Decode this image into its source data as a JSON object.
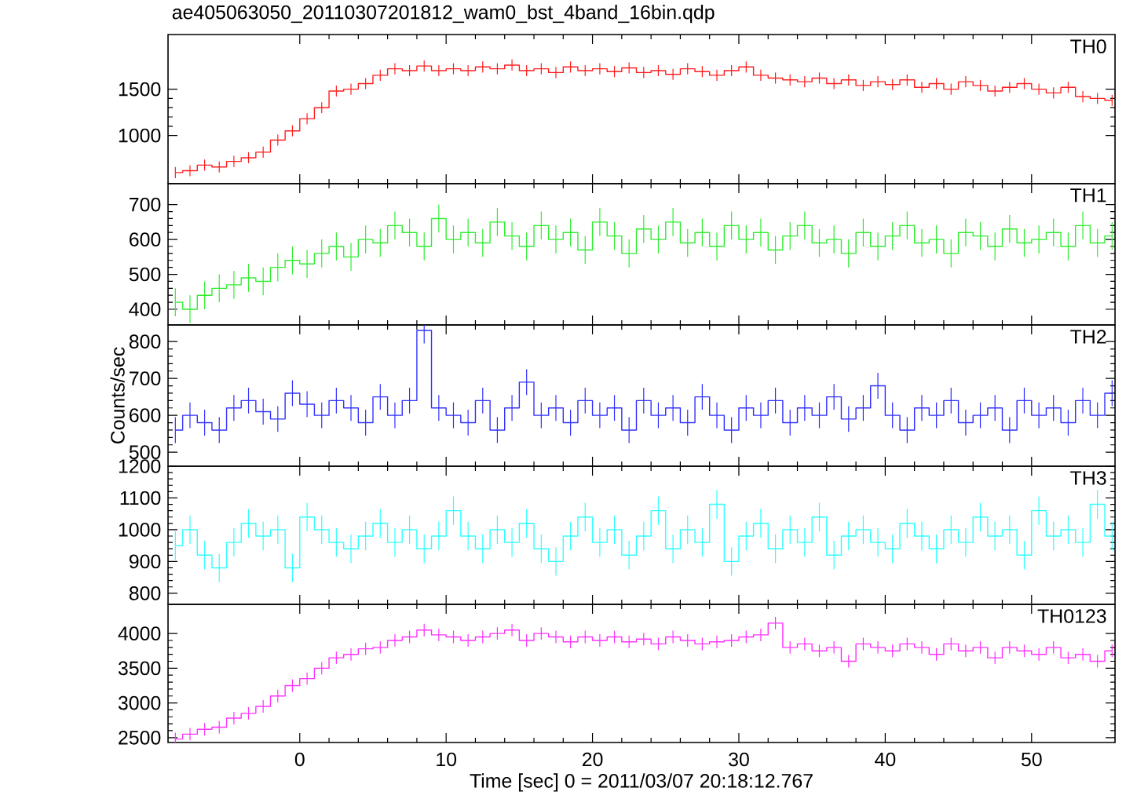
{
  "chart_data": [
    {
      "type": "step",
      "title": "ae405063050_20110307201812_wam0_bst_4band_16bin.qdp",
      "tick_labels": "y",
      "legend": "top right",
      "x": [
        -8.5,
        -7.5,
        -6.5,
        -5.5,
        -4.5,
        -3.5,
        -2.5,
        -1.5,
        -0.5,
        0.5,
        1.5,
        2.5,
        3.5,
        4.5,
        5.5,
        6.5,
        7.5,
        8.5,
        9.5,
        10.5,
        11.5,
        12.5,
        13.5,
        14.5,
        15.5,
        16.5,
        17.5,
        18.5,
        19.5,
        20.5,
        21.5,
        22.5,
        23.5,
        24.5,
        25.5,
        26.5,
        27.5,
        28.5,
        29.5,
        30.5,
        31.5,
        32.5,
        33.5,
        34.5,
        35.5,
        36.5,
        37.5,
        38.5,
        39.5,
        40.5,
        41.5,
        42.5,
        43.5,
        44.5,
        45.5,
        46.5,
        47.5,
        48.5,
        49.5,
        50.5,
        51.5,
        52.5,
        53.5,
        54.5,
        55.5
      ],
      "xlim": [
        -9,
        55.7
      ],
      "xticks": [
        0,
        10,
        20,
        30,
        40,
        50
      ],
      "ylim": [
        480,
        2090
      ],
      "yticks": [
        1000,
        1500
      ],
      "series": [
        {
          "name": "TH0",
          "color": "#ff2020",
          "values": [
            600,
            620,
            680,
            660,
            720,
            760,
            820,
            950,
            1050,
            1180,
            1300,
            1480,
            1500,
            1560,
            1650,
            1720,
            1700,
            1750,
            1700,
            1720,
            1700,
            1740,
            1720,
            1760,
            1700,
            1720,
            1680,
            1740,
            1700,
            1720,
            1690,
            1730,
            1680,
            1700,
            1660,
            1720,
            1690,
            1650,
            1700,
            1740,
            1650,
            1620,
            1600,
            1580,
            1620,
            1560,
            1600,
            1540,
            1580,
            1550,
            1600,
            1520,
            1560,
            1500,
            1580,
            1540,
            1480,
            1520,
            1560,
            1500,
            1460,
            1520,
            1420,
            1400,
            1380
          ],
          "errors": [
            60,
            60,
            60,
            60,
            60,
            60,
            60,
            60,
            60,
            60,
            60,
            60,
            60,
            60,
            60,
            60,
            60,
            60,
            60,
            60,
            60,
            60,
            60,
            60,
            60,
            60,
            60,
            60,
            60,
            60,
            60,
            60,
            60,
            60,
            60,
            60,
            60,
            60,
            60,
            60,
            60,
            60,
            60,
            60,
            60,
            60,
            60,
            60,
            60,
            60,
            60,
            60,
            60,
            60,
            60,
            60,
            60,
            60,
            60,
            60,
            60,
            60,
            60,
            60,
            60
          ]
        }
      ]
    },
    {
      "type": "step",
      "tick_labels": "y",
      "legend": "top right",
      "x": [
        -8.5,
        -7.5,
        -6.5,
        -5.5,
        -4.5,
        -3.5,
        -2.5,
        -1.5,
        -0.5,
        0.5,
        1.5,
        2.5,
        3.5,
        4.5,
        5.5,
        6.5,
        7.5,
        8.5,
        9.5,
        10.5,
        11.5,
        12.5,
        13.5,
        14.5,
        15.5,
        16.5,
        17.5,
        18.5,
        19.5,
        20.5,
        21.5,
        22.5,
        23.5,
        24.5,
        25.5,
        26.5,
        27.5,
        28.5,
        29.5,
        30.5,
        31.5,
        32.5,
        33.5,
        34.5,
        35.5,
        36.5,
        37.5,
        38.5,
        39.5,
        40.5,
        41.5,
        42.5,
        43.5,
        44.5,
        45.5,
        46.5,
        47.5,
        48.5,
        49.5,
        50.5,
        51.5,
        52.5,
        53.5,
        54.5,
        55.5
      ],
      "xlim": [
        -9,
        55.7
      ],
      "xticks": [
        0,
        10,
        20,
        30,
        40,
        50
      ],
      "ylim": [
        355,
        760
      ],
      "yticks": [
        400,
        500,
        600,
        700
      ],
      "series": [
        {
          "name": "TH1",
          "color": "#33ee33",
          "values": [
            420,
            400,
            440,
            460,
            470,
            490,
            480,
            520,
            540,
            530,
            560,
            580,
            550,
            600,
            590,
            640,
            620,
            580,
            660,
            600,
            620,
            590,
            650,
            610,
            580,
            640,
            600,
            620,
            570,
            650,
            610,
            560,
            630,
            600,
            650,
            590,
            620,
            580,
            640,
            600,
            620,
            570,
            610,
            640,
            590,
            600,
            560,
            620,
            580,
            610,
            640,
            590,
            600,
            560,
            620,
            610,
            580,
            630,
            590,
            600,
            620,
            580,
            640,
            590,
            610
          ],
          "errors": [
            40,
            40,
            40,
            40,
            40,
            40,
            40,
            40,
            40,
            40,
            40,
            40,
            40,
            40,
            40,
            40,
            40,
            40,
            40,
            40,
            40,
            40,
            40,
            40,
            40,
            40,
            40,
            40,
            40,
            40,
            40,
            40,
            40,
            40,
            40,
            40,
            40,
            40,
            40,
            40,
            40,
            40,
            40,
            40,
            40,
            40,
            40,
            40,
            40,
            40,
            40,
            40,
            40,
            40,
            40,
            40,
            40,
            40,
            40,
            40,
            40,
            40,
            40,
            40,
            40
          ]
        }
      ]
    },
    {
      "type": "step",
      "tick_labels": "y",
      "legend": "top right",
      "ylabel": "Counts/sec",
      "x": [
        -8.5,
        -7.5,
        -6.5,
        -5.5,
        -4.5,
        -3.5,
        -2.5,
        -1.5,
        -0.5,
        0.5,
        1.5,
        2.5,
        3.5,
        4.5,
        5.5,
        6.5,
        7.5,
        8.5,
        9.5,
        10.5,
        11.5,
        12.5,
        13.5,
        14.5,
        15.5,
        16.5,
        17.5,
        18.5,
        19.5,
        20.5,
        21.5,
        22.5,
        23.5,
        24.5,
        25.5,
        26.5,
        27.5,
        28.5,
        29.5,
        30.5,
        31.5,
        32.5,
        33.5,
        34.5,
        35.5,
        36.5,
        37.5,
        38.5,
        39.5,
        40.5,
        41.5,
        42.5,
        43.5,
        44.5,
        45.5,
        46.5,
        47.5,
        48.5,
        49.5,
        50.5,
        51.5,
        52.5,
        53.5,
        54.5,
        55.5
      ],
      "xlim": [
        -9,
        55.7
      ],
      "xticks": [
        0,
        10,
        20,
        30,
        40,
        50
      ],
      "ylim": [
        462,
        845
      ],
      "yticks": [
        500,
        600,
        700,
        800
      ],
      "series": [
        {
          "name": "TH2",
          "color": "#3333ff",
          "values": [
            560,
            600,
            580,
            560,
            620,
            640,
            610,
            590,
            660,
            630,
            600,
            640,
            620,
            580,
            650,
            600,
            640,
            830,
            620,
            600,
            580,
            640,
            560,
            620,
            690,
            600,
            620,
            580,
            640,
            600,
            620,
            560,
            640,
            600,
            620,
            580,
            650,
            600,
            560,
            620,
            600,
            640,
            580,
            620,
            600,
            650,
            590,
            620,
            680,
            600,
            560,
            620,
            600,
            640,
            580,
            600,
            620,
            560,
            640,
            600,
            620,
            580,
            640,
            600,
            660
          ],
          "errors": [
            35,
            35,
            35,
            35,
            35,
            35,
            35,
            35,
            35,
            35,
            35,
            35,
            35,
            35,
            35,
            35,
            35,
            35,
            35,
            35,
            35,
            35,
            35,
            35,
            35,
            35,
            35,
            35,
            35,
            35,
            35,
            35,
            35,
            35,
            35,
            35,
            35,
            35,
            35,
            35,
            35,
            35,
            35,
            35,
            35,
            35,
            35,
            35,
            35,
            35,
            35,
            35,
            35,
            35,
            35,
            35,
            35,
            35,
            35,
            35,
            35,
            35,
            35,
            35,
            35
          ]
        }
      ]
    },
    {
      "type": "step",
      "tick_labels": "y",
      "legend": "top right",
      "x": [
        -8.5,
        -7.5,
        -6.5,
        -5.5,
        -4.5,
        -3.5,
        -2.5,
        -1.5,
        -0.5,
        0.5,
        1.5,
        2.5,
        3.5,
        4.5,
        5.5,
        6.5,
        7.5,
        8.5,
        9.5,
        10.5,
        11.5,
        12.5,
        13.5,
        14.5,
        15.5,
        16.5,
        17.5,
        18.5,
        19.5,
        20.5,
        21.5,
        22.5,
        23.5,
        24.5,
        25.5,
        26.5,
        27.5,
        28.5,
        29.5,
        30.5,
        31.5,
        32.5,
        33.5,
        34.5,
        35.5,
        36.5,
        37.5,
        38.5,
        39.5,
        40.5,
        41.5,
        42.5,
        43.5,
        44.5,
        45.5,
        46.5,
        47.5,
        48.5,
        49.5,
        50.5,
        51.5,
        52.5,
        53.5,
        54.5,
        55.5
      ],
      "xlim": [
        -9,
        55.7
      ],
      "xticks": [
        0,
        10,
        20,
        30,
        40,
        50
      ],
      "ylim": [
        765,
        1200
      ],
      "yticks": [
        800,
        900,
        1000,
        1100,
        1200
      ],
      "series": [
        {
          "name": "TH3",
          "color": "#33ffff",
          "values": [
            950,
            1000,
            920,
            880,
            960,
            1020,
            980,
            1000,
            880,
            1040,
            1000,
            960,
            940,
            980,
            1020,
            960,
            1000,
            940,
            980,
            1060,
            980,
            940,
            1000,
            960,
            1020,
            940,
            900,
            980,
            1040,
            960,
            1000,
            920,
            980,
            1060,
            940,
            1000,
            960,
            1080,
            900,
            980,
            1020,
            940,
            1000,
            960,
            1040,
            920,
            980,
            1000,
            960,
            940,
            1020,
            980,
            940,
            1000,
            960,
            1040,
            980,
            1000,
            920,
            1060,
            980,
            1000,
            960,
            1080,
            980
          ],
          "errors": [
            45,
            45,
            45,
            45,
            45,
            45,
            45,
            45,
            45,
            45,
            45,
            45,
            45,
            45,
            45,
            45,
            45,
            45,
            45,
            45,
            45,
            45,
            45,
            45,
            45,
            45,
            45,
            45,
            45,
            45,
            45,
            45,
            45,
            45,
            45,
            45,
            45,
            45,
            45,
            45,
            45,
            45,
            45,
            45,
            45,
            45,
            45,
            45,
            45,
            45,
            45,
            45,
            45,
            45,
            45,
            45,
            45,
            45,
            45,
            45,
            45,
            45,
            45,
            45,
            45
          ]
        }
      ]
    },
    {
      "type": "step",
      "legend": "top right",
      "xlabel": "Time [sec] 0 = 2011/03/07 20:18:12.767",
      "x": [
        -8.5,
        -7.5,
        -6.5,
        -5.5,
        -4.5,
        -3.5,
        -2.5,
        -1.5,
        -0.5,
        0.5,
        1.5,
        2.5,
        3.5,
        4.5,
        5.5,
        6.5,
        7.5,
        8.5,
        9.5,
        10.5,
        11.5,
        12.5,
        13.5,
        14.5,
        15.5,
        16.5,
        17.5,
        18.5,
        19.5,
        20.5,
        21.5,
        22.5,
        23.5,
        24.5,
        25.5,
        26.5,
        27.5,
        28.5,
        29.5,
        30.5,
        31.5,
        32.5,
        33.5,
        34.5,
        35.5,
        36.5,
        37.5,
        38.5,
        39.5,
        40.5,
        41.5,
        42.5,
        43.5,
        44.5,
        45.5,
        46.5,
        47.5,
        48.5,
        49.5,
        50.5,
        51.5,
        52.5,
        53.5,
        54.5,
        55.5
      ],
      "xlim": [
        -9,
        55.7
      ],
      "xticks": [
        0,
        10,
        20,
        30,
        40,
        50
      ],
      "ylim": [
        2430,
        4420
      ],
      "yticks": [
        2500,
        3000,
        3500,
        4000
      ],
      "series": [
        {
          "name": "TH0123",
          "color": "#ff33ff",
          "values": [
            2480,
            2550,
            2620,
            2650,
            2780,
            2850,
            2950,
            3100,
            3250,
            3350,
            3500,
            3650,
            3700,
            3780,
            3800,
            3900,
            3950,
            4050,
            3980,
            3950,
            3900,
            3950,
            4000,
            4050,
            3900,
            4000,
            3950,
            3880,
            3950,
            3900,
            3950,
            3880,
            3920,
            3850,
            3950,
            3900,
            3850,
            3880,
            3900,
            3950,
            3980,
            4150,
            3800,
            3850,
            3750,
            3800,
            3600,
            3850,
            3800,
            3750,
            3850,
            3800,
            3700,
            3850,
            3750,
            3800,
            3650,
            3800,
            3750,
            3700,
            3800,
            3650,
            3700,
            3600,
            3750
          ],
          "errors": [
            90,
            90,
            90,
            90,
            90,
            90,
            90,
            90,
            90,
            90,
            90,
            90,
            90,
            90,
            90,
            90,
            90,
            90,
            90,
            90,
            90,
            90,
            90,
            90,
            90,
            90,
            90,
            90,
            90,
            90,
            90,
            90,
            90,
            90,
            90,
            90,
            90,
            90,
            90,
            90,
            90,
            90,
            90,
            90,
            90,
            90,
            90,
            90,
            90,
            90,
            90,
            90,
            90,
            90,
            90,
            90,
            90,
            90,
            90,
            90,
            90,
            90,
            90,
            90,
            90
          ]
        }
      ]
    }
  ]
}
